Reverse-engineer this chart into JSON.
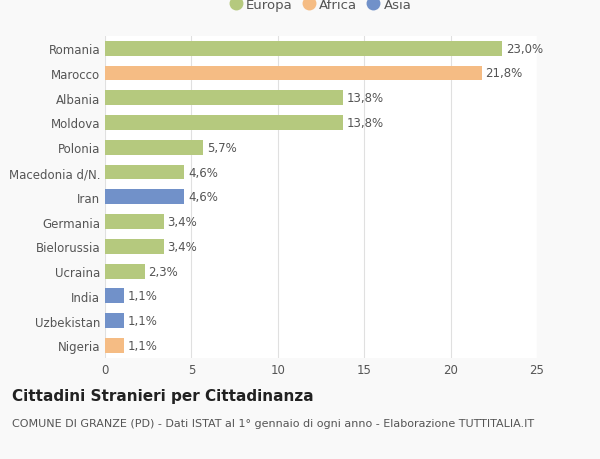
{
  "categories": [
    "Nigeria",
    "Uzbekistan",
    "India",
    "Ucraina",
    "Bielorussia",
    "Germania",
    "Iran",
    "Macedonia d/N.",
    "Polonia",
    "Moldova",
    "Albania",
    "Marocco",
    "Romania"
  ],
  "values": [
    1.1,
    1.1,
    1.1,
    2.3,
    3.4,
    3.4,
    4.6,
    4.6,
    5.7,
    13.8,
    13.8,
    21.8,
    23.0
  ],
  "labels": [
    "1,1%",
    "1,1%",
    "1,1%",
    "2,3%",
    "3,4%",
    "3,4%",
    "4,6%",
    "4,6%",
    "5,7%",
    "13,8%",
    "13,8%",
    "21,8%",
    "23,0%"
  ],
  "colors": [
    "#f5bc84",
    "#7191c9",
    "#7191c9",
    "#b5c97e",
    "#b5c97e",
    "#b5c97e",
    "#7191c9",
    "#b5c97e",
    "#b5c97e",
    "#b5c97e",
    "#b5c97e",
    "#f5bc84",
    "#b5c97e"
  ],
  "legend_labels": [
    "Europa",
    "Africa",
    "Asia"
  ],
  "legend_colors": [
    "#b5c97e",
    "#f5bc84",
    "#7191c9"
  ],
  "title": "Cittadini Stranieri per Cittadinanza",
  "subtitle": "COMUNE DI GRANZE (PD) - Dati ISTAT al 1° gennaio di ogni anno - Elaborazione TUTTITALIA.IT",
  "xlim": [
    0,
    25
  ],
  "xticks": [
    0,
    5,
    10,
    15,
    20,
    25
  ],
  "background_color": "#f9f9f9",
  "bar_area_color": "#ffffff",
  "grid_color": "#e0e0e0",
  "text_color": "#555555",
  "label_fontsize": 8.5,
  "tick_fontsize": 8.5,
  "title_fontsize": 11,
  "subtitle_fontsize": 8,
  "bar_height": 0.6
}
